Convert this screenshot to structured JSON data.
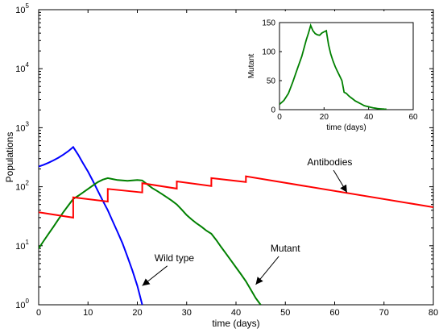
{
  "chart_data": [
    {
      "type": "line",
      "xlabel": "time (days)",
      "ylabel": "Populations",
      "xlim": [
        0,
        80
      ],
      "ylim": [
        1,
        100000
      ],
      "yscale": "log",
      "grid": false,
      "legend": "none",
      "x_ticks": [
        "0",
        "10",
        "20",
        "30",
        "40",
        "50",
        "60",
        "70",
        "80"
      ],
      "y_ticks": [
        {
          "base": "10",
          "exp": "0"
        },
        {
          "base": "10",
          "exp": "1"
        },
        {
          "base": "10",
          "exp": "2"
        },
        {
          "base": "10",
          "exp": "3"
        },
        {
          "base": "10",
          "exp": "4"
        },
        {
          "base": "10",
          "exp": "5"
        }
      ],
      "annotations": [
        {
          "text": "Antibodies",
          "x": 59,
          "y": 230,
          "arrow_to": [
            62.5,
            80
          ]
        },
        {
          "text": "Wild type",
          "x": 27.5,
          "y": 5.5,
          "arrow_to": [
            21,
            2.1
          ]
        },
        {
          "text": "Mutant",
          "x": 50,
          "y": 8,
          "arrow_to": [
            44,
            2.2
          ]
        }
      ],
      "series": [
        {
          "color": "#0000ff",
          "points": [
            [
              0,
              220
            ],
            [
              1,
              235
            ],
            [
              2,
              255
            ],
            [
              3,
              280
            ],
            [
              4,
              310
            ],
            [
              5,
              350
            ],
            [
              6,
              400
            ],
            [
              7,
              470
            ],
            [
              8,
              350
            ],
            [
              9,
              250
            ],
            [
              10,
              180
            ],
            [
              11,
              125
            ],
            [
              12,
              85
            ],
            [
              13,
              58
            ],
            [
              14,
              40
            ],
            [
              15,
              26
            ],
            [
              16,
              17
            ],
            [
              17,
              11
            ],
            [
              18,
              6.5
            ],
            [
              19,
              3.8
            ],
            [
              20,
              2.1
            ],
            [
              21,
              1
            ]
          ]
        },
        {
          "color": "#008000",
          "points": [
            [
              0,
              9
            ],
            [
              1,
              12
            ],
            [
              2,
              16
            ],
            [
              3,
              21
            ],
            [
              4,
              28
            ],
            [
              5,
              37
            ],
            [
              6,
              48
            ],
            [
              7,
              62
            ],
            [
              8,
              70
            ],
            [
              9,
              80
            ],
            [
              10,
              92
            ],
            [
              11,
              105
            ],
            [
              12,
              120
            ],
            [
              13,
              132
            ],
            [
              14,
              140
            ],
            [
              15,
              135
            ],
            [
              16,
              130
            ],
            [
              17,
              128
            ],
            [
              18,
              126
            ],
            [
              19,
              128
            ],
            [
              20,
              130
            ],
            [
              21,
              128
            ],
            [
              22,
              110
            ],
            [
              23,
              95
            ],
            [
              24,
              85
            ],
            [
              25,
              75
            ],
            [
              26,
              66
            ],
            [
              27,
              58
            ],
            [
              28,
              50
            ],
            [
              29,
              41
            ],
            [
              30,
              33
            ],
            [
              31,
              28
            ],
            [
              32,
              24
            ],
            [
              33,
              21
            ],
            [
              34,
              18
            ],
            [
              35,
              16
            ],
            [
              36,
              12.5
            ],
            [
              37,
              9.5
            ],
            [
              38,
              7.3
            ],
            [
              39,
              5.6
            ],
            [
              40,
              4.3
            ],
            [
              41,
              3.3
            ],
            [
              42,
              2.5
            ],
            [
              43,
              1.8
            ],
            [
              44,
              1.3
            ],
            [
              45,
              1
            ]
          ]
        },
        {
          "color": "#ff0000",
          "points": [
            [
              0,
              37
            ],
            [
              7,
              30
            ],
            [
              7,
              66
            ],
            [
              14,
              56
            ],
            [
              14,
              92
            ],
            [
              21,
              80
            ],
            [
              21,
              115
            ],
            [
              28,
              93
            ],
            [
              28,
              123
            ],
            [
              35,
              103
            ],
            [
              35,
              140
            ],
            [
              42,
              120
            ],
            [
              42,
              150
            ],
            [
              80,
              45
            ]
          ]
        }
      ]
    },
    {
      "type": "line",
      "xlabel": "time (days)",
      "ylabel": "Mutant",
      "xlim": [
        0,
        60
      ],
      "ylim": [
        0,
        150
      ],
      "x_ticks": [
        "0",
        "20",
        "40",
        "60"
      ],
      "y_ticks": [
        "0",
        "50",
        "100",
        "150"
      ],
      "series": [
        {
          "color": "#008000",
          "points": [
            [
              0,
              9
            ],
            [
              2,
              16
            ],
            [
              4,
              28
            ],
            [
              6,
              48
            ],
            [
              8,
              70
            ],
            [
              10,
              92
            ],
            [
              12,
              120
            ],
            [
              13,
              132
            ],
            [
              14,
              145
            ],
            [
              15,
              136
            ],
            [
              16,
              131
            ],
            [
              17,
              129
            ],
            [
              18,
              128
            ],
            [
              19,
              132
            ],
            [
              20,
              134
            ],
            [
              21,
              136
            ],
            [
              22,
              112
            ],
            [
              23,
              96
            ],
            [
              24,
              84
            ],
            [
              25,
              74
            ],
            [
              26,
              66
            ],
            [
              27,
              58
            ],
            [
              28,
              50
            ],
            [
              29,
              30
            ],
            [
              30,
              28
            ],
            [
              31,
              24
            ],
            [
              32,
              21
            ],
            [
              33,
              18
            ],
            [
              34,
              15
            ],
            [
              35,
              13
            ],
            [
              36,
              11
            ],
            [
              37,
              9
            ],
            [
              38,
              7
            ],
            [
              39,
              6
            ],
            [
              40,
              5
            ],
            [
              41,
              4
            ],
            [
              42,
              3
            ],
            [
              43,
              2.5
            ],
            [
              44,
              2
            ],
            [
              45,
              1.5
            ],
            [
              46,
              1.2
            ],
            [
              47,
              1
            ],
            [
              48,
              0.8
            ]
          ]
        }
      ]
    }
  ]
}
